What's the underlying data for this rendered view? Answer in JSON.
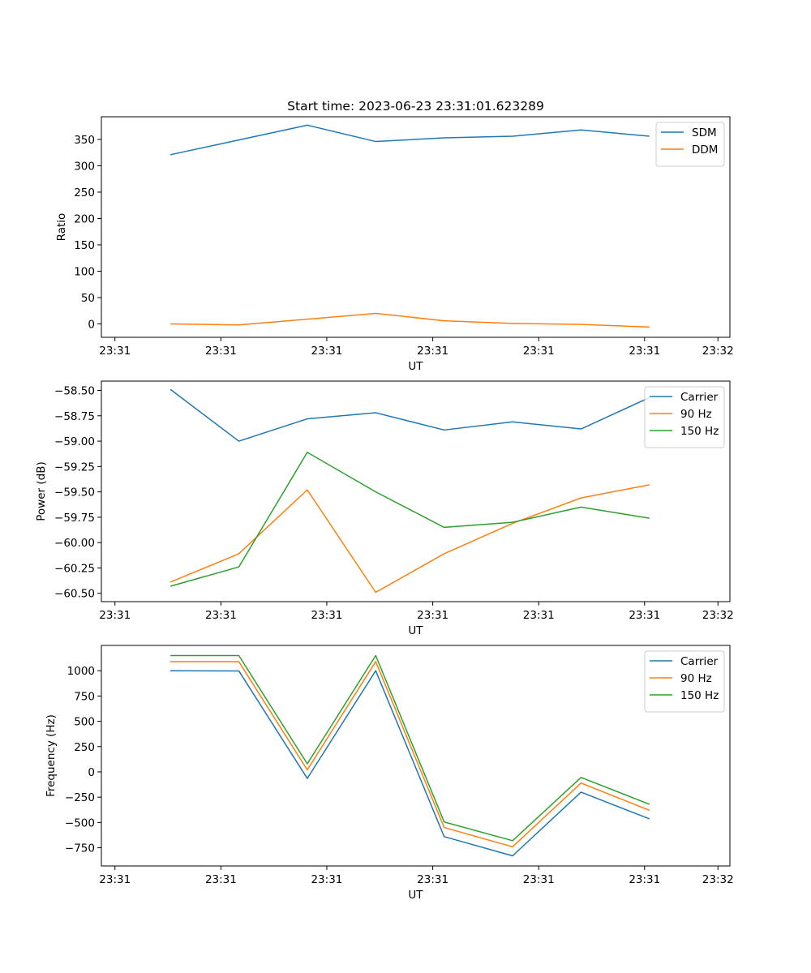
{
  "figure": {
    "title": "Start time: 2023-06-23 23:31:01.623289"
  },
  "colors": {
    "blue": "#1f77b4",
    "orange": "#ff7f0e",
    "green": "#2ca02c"
  },
  "chart_data": [
    {
      "type": "line",
      "title": "Start time: 2023-06-23 23:31:01.623289",
      "xlabel": "UT",
      "ylabel": "Ratio",
      "x_tick_labels": [
        "23:31",
        "23:31",
        "23:31",
        "23:31",
        "23:31",
        "23:31",
        "23:32"
      ],
      "y_ticks": [
        0,
        50,
        100,
        150,
        200,
        250,
        300,
        350
      ],
      "y_tick_labels": [
        "0",
        "50",
        "100",
        "150",
        "200",
        "250",
        "300",
        "350"
      ],
      "ylim": [
        -25.4,
        393
      ],
      "legend_placement": "top-right",
      "grid": false,
      "x": [
        0.62,
        0.68,
        0.74,
        0.8,
        0.86,
        0.92,
        0.98,
        1.04
      ],
      "xlim": [
        0.5595,
        1.1105
      ],
      "x_ticks": [
        0.5714,
        0.6643,
        0.7571,
        0.85,
        0.9429,
        1.0357,
        1.1
      ],
      "series": [
        {
          "name": "SDM",
          "color": "#1f77b4",
          "values": [
            321,
            349,
            377,
            346,
            353,
            356,
            368,
            356
          ]
        },
        {
          "name": "DDM",
          "color": "#ff7f0e",
          "values": [
            0,
            -2,
            9,
            20,
            6,
            1,
            -1,
            -6
          ]
        }
      ]
    },
    {
      "type": "line",
      "title": "",
      "xlabel": "UT",
      "ylabel": "Power (dB)",
      "x_tick_labels": [
        "23:31",
        "23:31",
        "23:31",
        "23:31",
        "23:31",
        "23:31",
        "23:32"
      ],
      "y_ticks": [
        -58.5,
        -58.75,
        -59.0,
        -59.25,
        -59.5,
        -59.75,
        -60.0,
        -60.25,
        -60.5
      ],
      "y_tick_labels": [
        "−58.50",
        "−58.75",
        "−59.00",
        "−59.25",
        "−59.50",
        "−59.75",
        "−60.00",
        "−60.25",
        "−60.50"
      ],
      "ylim": [
        -60.582,
        -58.408
      ],
      "legend_placement": "top-right",
      "grid": false,
      "x": [
        0.62,
        0.68,
        0.74,
        0.8,
        0.86,
        0.92,
        0.98,
        1.04
      ],
      "xlim": [
        0.5595,
        1.1105
      ],
      "x_ticks": [
        0.5714,
        0.6643,
        0.7571,
        0.85,
        0.9429,
        1.0357,
        1.1
      ],
      "series": [
        {
          "name": "Carrier",
          "color": "#1f77b4",
          "values": [
            -58.49,
            -59.0,
            -58.78,
            -58.72,
            -58.89,
            -58.81,
            -58.88,
            -58.57
          ]
        },
        {
          "name": "90 Hz",
          "color": "#ff7f0e",
          "values": [
            -60.39,
            -60.11,
            -59.48,
            -60.49,
            -60.11,
            -59.81,
            -59.56,
            -59.43
          ]
        },
        {
          "name": "150 Hz",
          "color": "#2ca02c",
          "values": [
            -60.43,
            -60.24,
            -59.11,
            -59.5,
            -59.85,
            -59.8,
            -59.65,
            -59.76
          ]
        }
      ]
    },
    {
      "type": "line",
      "title": "",
      "xlabel": "UT",
      "ylabel": "Frequency (Hz)",
      "x_tick_labels": [
        "23:31",
        "23:31",
        "23:31",
        "23:31",
        "23:31",
        "23:31",
        "23:32"
      ],
      "y_ticks": [
        1000,
        750,
        500,
        250,
        0,
        -250,
        -500,
        -750
      ],
      "y_tick_labels": [
        "1000",
        "750",
        "500",
        "250",
        "0",
        "−250",
        "−500",
        "−750"
      ],
      "ylim": [
        -930,
        1250
      ],
      "legend_placement": "top-right",
      "grid": false,
      "x": [
        0.62,
        0.68,
        0.74,
        0.8,
        0.86,
        0.92,
        0.98,
        1.04
      ],
      "xlim": [
        0.5595,
        1.1105
      ],
      "x_ticks": [
        0.5714,
        0.6643,
        0.7571,
        0.85,
        0.9429,
        1.0357,
        1.1
      ],
      "series": [
        {
          "name": "Carrier",
          "color": "#1f77b4",
          "values": [
            1000,
            998,
            -65,
            1000,
            -640,
            -830,
            -200,
            -465
          ]
        },
        {
          "name": "90 Hz",
          "color": "#ff7f0e",
          "values": [
            1090,
            1090,
            20,
            1090,
            -550,
            -740,
            -110,
            -380
          ]
        },
        {
          "name": "150 Hz",
          "color": "#2ca02c",
          "values": [
            1150,
            1150,
            80,
            1150,
            -495,
            -680,
            -55,
            -320
          ]
        }
      ]
    }
  ]
}
